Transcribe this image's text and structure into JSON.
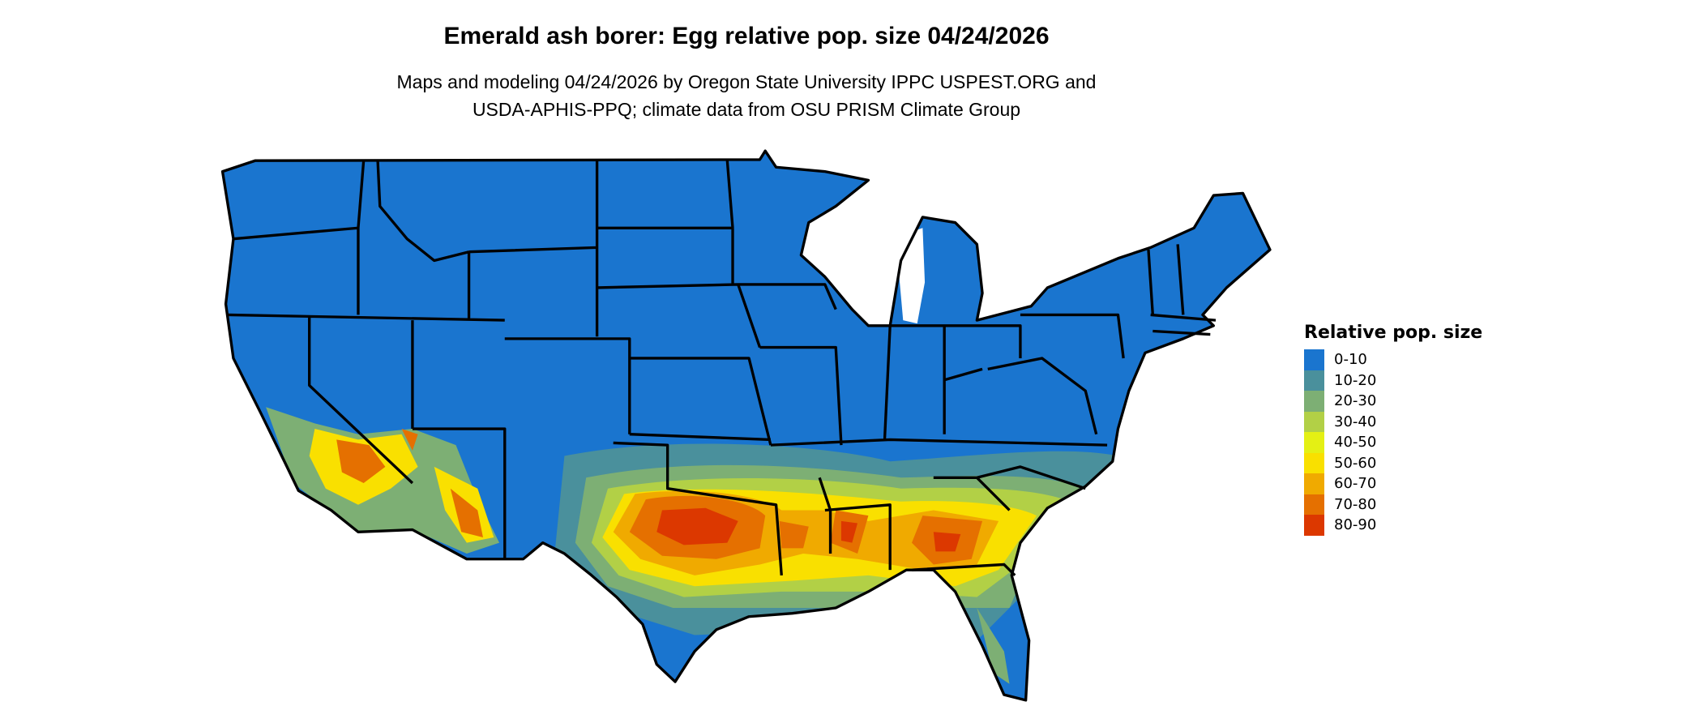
{
  "title": "Emerald ash borer: Egg relative pop. size 04/24/2026",
  "subtitle_lines": [
    "Maps and modeling 04/24/2026 by Oregon State University IPPC USPEST.ORG and",
    "USDA-APHIS-PPQ; climate data from OSU PRISM Climate Group"
  ],
  "map": {
    "region": "Contiguous United States",
    "background_class_color": "#1a75cf",
    "state_border_color": "#000000"
  },
  "legend": {
    "title": "Relative pop. size",
    "placement": "right",
    "items": [
      {
        "label": "0-10",
        "color": "#1a75cf"
      },
      {
        "label": "10-20",
        "color": "#4a909c"
      },
      {
        "label": "20-30",
        "color": "#7daf74"
      },
      {
        "label": "30-40",
        "color": "#b2d046"
      },
      {
        "label": "40-50",
        "color": "#e4f014"
      },
      {
        "label": "50-60",
        "color": "#f9e000"
      },
      {
        "label": "60-70",
        "color": "#f0aa00"
      },
      {
        "label": "70-80",
        "color": "#e57000"
      },
      {
        "label": "80-90",
        "color": "#dc3800"
      }
    ]
  }
}
